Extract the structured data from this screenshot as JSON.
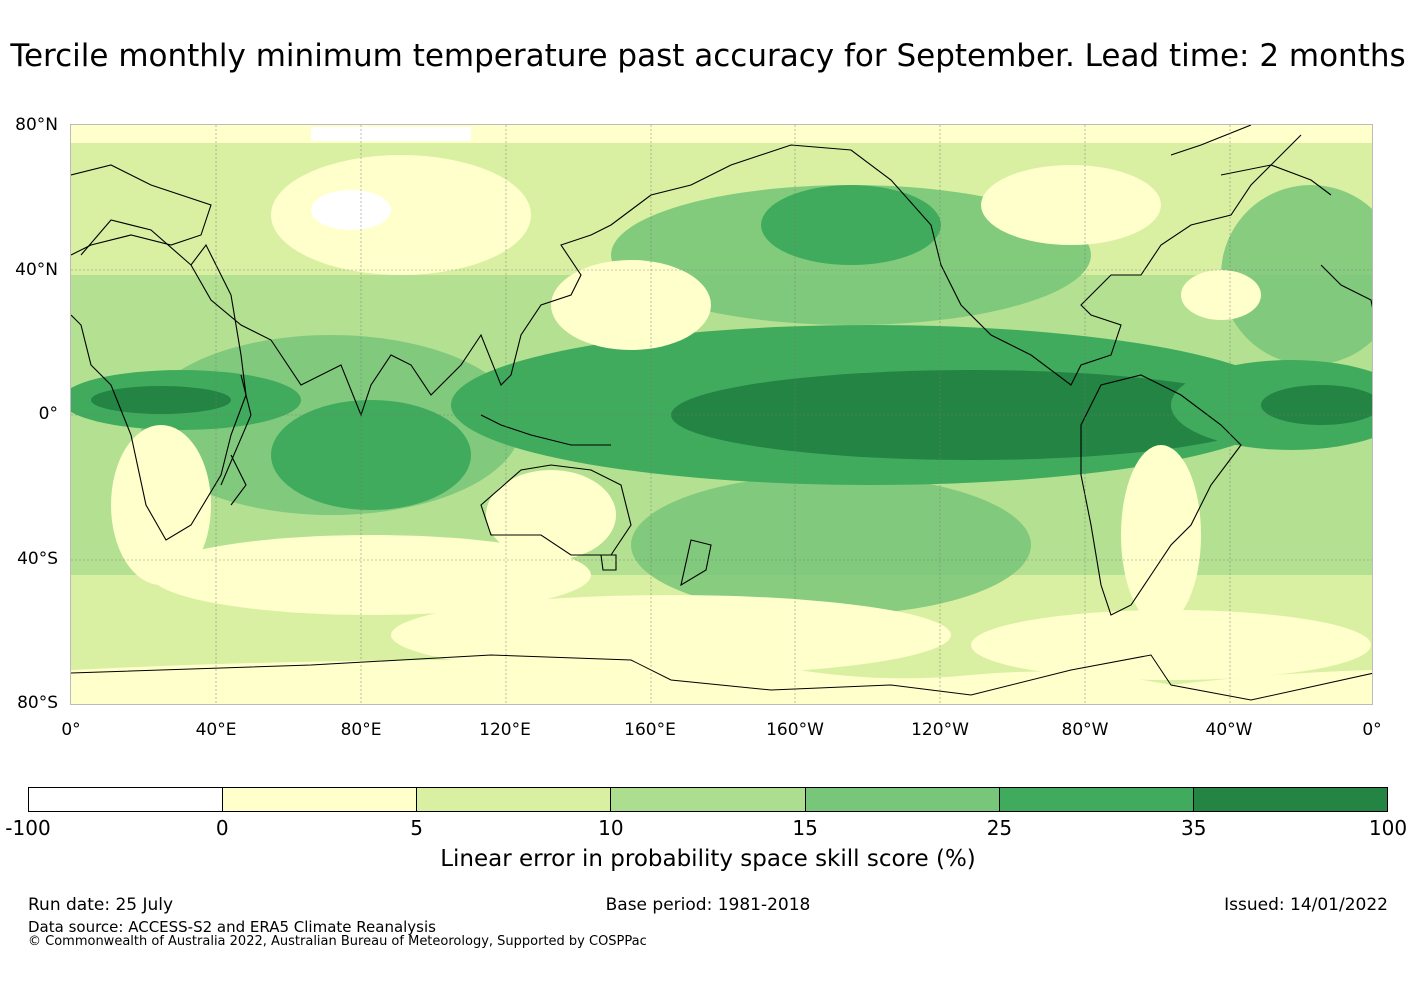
{
  "title": "Tercile monthly minimum temperature past accuracy for September. Lead time: 2 months",
  "map": {
    "lat_labels": [
      "80°N",
      "40°N",
      "0°",
      "40°S",
      "80°S"
    ],
    "lon_labels": [
      "0°",
      "40°E",
      "80°E",
      "120°E",
      "160°E",
      "160°W",
      "120°W",
      "80°W",
      "40°W",
      "0°"
    ]
  },
  "colorbar": {
    "label": "Linear error in probability space skill score (%)",
    "ticks": [
      "-100",
      "0",
      "5",
      "10",
      "15",
      "25",
      "35",
      "100"
    ],
    "colors": [
      "#ffffff",
      "#ffffcc",
      "#d9f0a3",
      "#addd8e",
      "#78c679",
      "#41ab5d",
      "#238443"
    ]
  },
  "footer": {
    "run_date": "Run date: 25 July",
    "base_period": "Base period: 1981-2018",
    "issued": "Issued: 14/01/2022",
    "data_source": "Data source: ACCESS-S2 and ERA5 Climate Reanalysis",
    "copyright": "© Commonwealth of Australia 2022, Australian Bureau of Meteorology, Supported by COSPPac"
  }
}
